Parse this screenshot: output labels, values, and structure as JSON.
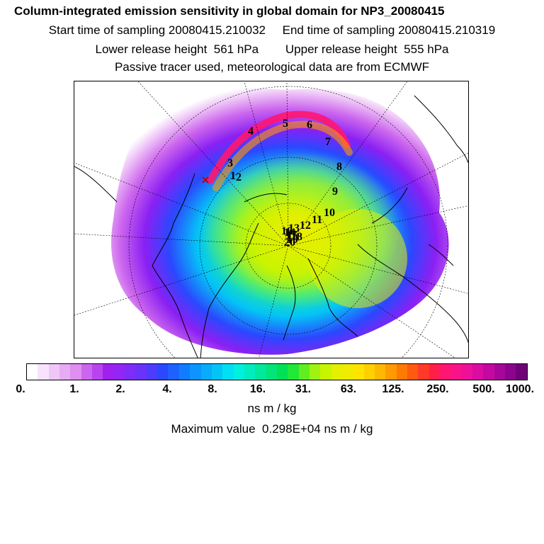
{
  "header": {
    "title": "Column-integrated emission sensitivity in global domain for NP3_20080415",
    "line2": "Start time of sampling 20080415.210032     End time of sampling 20080415.210319",
    "line3": "Lower release height  561 hPa        Upper release height  555 hPa",
    "line4": "Passive tracer used, meteorological data are from ECMWF"
  },
  "map": {
    "projection": "north polar stereographic",
    "trajectory_labels": [
      "1",
      "2",
      "3",
      "4",
      "5",
      "6",
      "7",
      "8",
      "9",
      "10",
      "11",
      "12",
      "13",
      "14",
      "15",
      "16",
      "17",
      "18",
      "19",
      "20"
    ]
  },
  "colorbar": {
    "tick_labels": [
      "0.",
      "1.",
      "2.",
      "4.",
      "8.",
      "16.",
      "31.",
      "63.",
      "125.",
      "250.",
      "500.",
      "1000."
    ],
    "unit": "ns m / kg",
    "colors": [
      "#ffffff",
      "#f7e3fb",
      "#efc7f7",
      "#e6abf3",
      "#de8fef",
      "#cc66ee",
      "#b844f0",
      "#a020f0",
      "#9326f5",
      "#7d2df8",
      "#6a33fa",
      "#4b3dfd",
      "#2b48ff",
      "#1d62ff",
      "#117cff",
      "#0c95ff",
      "#08acfb",
      "#04c4f6",
      "#00e0f2",
      "#00f0e0",
      "#00ecbd",
      "#00e89a",
      "#00e478",
      "#00e055",
      "#20e838",
      "#60ee20",
      "#a0f210",
      "#c8f400",
      "#e4f000",
      "#f0ec00",
      "#ffe400",
      "#ffd000",
      "#ffb800",
      "#ff9a00",
      "#ff7a00",
      "#ff5a10",
      "#ff3a28",
      "#ff1f4a",
      "#ff1670",
      "#fa1288",
      "#ee1098",
      "#dc0ca0",
      "#c408a0",
      "#a8069a",
      "#8c048e",
      "#700278"
    ]
  },
  "max_value_text": "Maximum value  0.298E+04 ns m / kg"
}
